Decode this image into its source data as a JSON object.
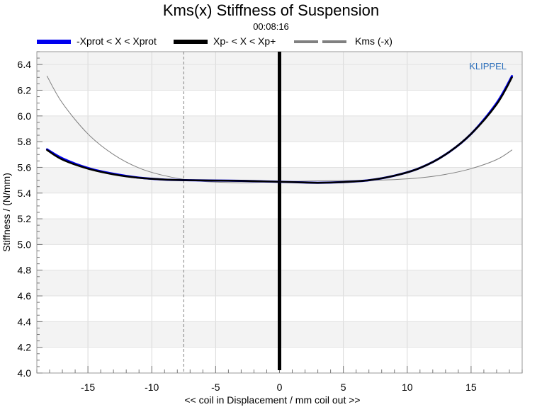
{
  "chart_data": {
    "type": "line",
    "title": "Kms(x) Stiffness of Suspension",
    "subtitle": "00:08:16",
    "xlabel": "<< coil in Displacement / mm coil out >>",
    "ylabel": "Stiffness / (N/mm)",
    "xlim": [
      -19,
      19
    ],
    "ylim": [
      4.0,
      6.5
    ],
    "xticks": [
      -15,
      -10,
      -5,
      0,
      5,
      10,
      15
    ],
    "yticks": [
      4.0,
      4.2,
      4.4,
      4.6,
      4.8,
      5.0,
      5.2,
      5.4,
      5.6,
      5.8,
      6.0,
      6.2,
      6.4
    ],
    "watermark": "KLIPPEL",
    "legend": [
      {
        "name": "-Xprot < X < Xprot",
        "color": "#0000ee"
      },
      {
        "name": "Xp- < X < Xp+",
        "color": "#000000"
      },
      {
        "name": "Kms (-x)",
        "color": "#808080"
      }
    ],
    "series": [
      {
        "name": "-Xprot < X < Xprot",
        "color": "#0000ee",
        "x": [
          -18.2,
          -17,
          -15,
          -13,
          -11,
          -9,
          -7,
          -5,
          -3,
          -1,
          1,
          3,
          5,
          7,
          9,
          11,
          13,
          15,
          17,
          18.2
        ],
        "y": [
          5.74,
          5.67,
          5.595,
          5.55,
          5.52,
          5.505,
          5.5,
          5.497,
          5.495,
          5.49,
          5.485,
          5.48,
          5.485,
          5.5,
          5.535,
          5.595,
          5.7,
          5.86,
          6.1,
          6.31
        ]
      },
      {
        "name": "Xp- < X < Xp+",
        "color": "#000000",
        "x": [
          -18.2,
          -17,
          -15,
          -13,
          -11,
          -9,
          -7,
          -5,
          -3,
          -1,
          1,
          3,
          5,
          7,
          9,
          11,
          13,
          15,
          17,
          18.2
        ],
        "y": [
          5.735,
          5.66,
          5.59,
          5.545,
          5.518,
          5.505,
          5.5,
          5.497,
          5.495,
          5.49,
          5.485,
          5.48,
          5.485,
          5.5,
          5.535,
          5.595,
          5.7,
          5.86,
          6.09,
          6.3
        ]
      },
      {
        "name": "Kms (-x)",
        "color": "#808080",
        "x": [
          -18.2,
          -17,
          -15,
          -13,
          -11,
          -9,
          -7,
          -5,
          -3,
          -1,
          1,
          3,
          5,
          7,
          9,
          11,
          13,
          15,
          17,
          18.2
        ],
        "y": [
          6.31,
          6.1,
          5.86,
          5.7,
          5.595,
          5.535,
          5.5,
          5.485,
          5.48,
          5.485,
          5.49,
          5.495,
          5.497,
          5.5,
          5.505,
          5.518,
          5.545,
          5.59,
          5.66,
          5.735
        ]
      }
    ],
    "vertical_lines": [
      {
        "x": -7.5,
        "style": "dashed",
        "color": "#808080"
      },
      {
        "x": 0,
        "style": "solid",
        "color": "#000000"
      }
    ]
  }
}
